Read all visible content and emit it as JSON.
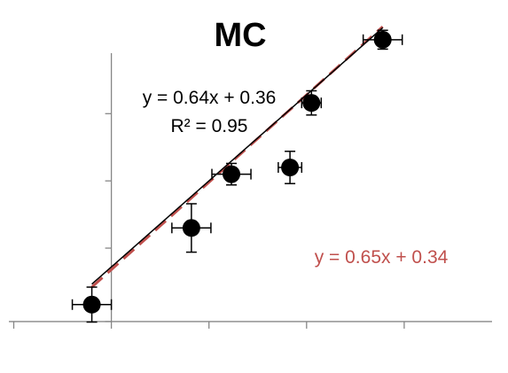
{
  "chart_data": {
    "type": "scatter",
    "title": "MC",
    "xlabel": "",
    "ylabel": "",
    "xlim": [
      -1.05,
      3.9
    ],
    "ylim": [
      -0.04,
      1.95
    ],
    "x_ticks": [
      -1,
      0,
      1,
      2,
      3
    ],
    "y_ticks": [
      0,
      0.5,
      1,
      1.5,
      2
    ],
    "tick_labels_visible": false,
    "grid": false,
    "series": [
      {
        "points": [
          {
            "x": -0.2,
            "y": 0.08,
            "xerr": 0.2,
            "yerr": 0.13
          },
          {
            "x": 0.82,
            "y": 0.65,
            "xerr": 0.2,
            "yerr": 0.18
          },
          {
            "x": 1.23,
            "y": 1.05,
            "xerr": 0.2,
            "yerr": 0.08
          },
          {
            "x": 1.83,
            "y": 1.1,
            "xerr": 0.12,
            "yerr": 0.12
          },
          {
            "x": 2.05,
            "y": 1.58,
            "xerr": 0.1,
            "yerr": 0.09
          },
          {
            "x": 2.78,
            "y": 2.05,
            "xerr": 0.2,
            "yerr": 0.07
          }
        ],
        "color": "#000000"
      }
    ],
    "fits": [
      {
        "equation": "y = 0.64x + 0.36",
        "r_squared": "R² = 0.95",
        "slope": 0.64,
        "intercept": 0.36,
        "x_range": [
          -0.2,
          2.78
        ],
        "color": "#000000",
        "style": "solid"
      },
      {
        "equation": "y = 0.65x + 0.34",
        "slope": 0.65,
        "intercept": 0.34,
        "x_range": [
          -0.2,
          2.78
        ],
        "color": "#c0504d",
        "style": "dashed"
      }
    ]
  }
}
